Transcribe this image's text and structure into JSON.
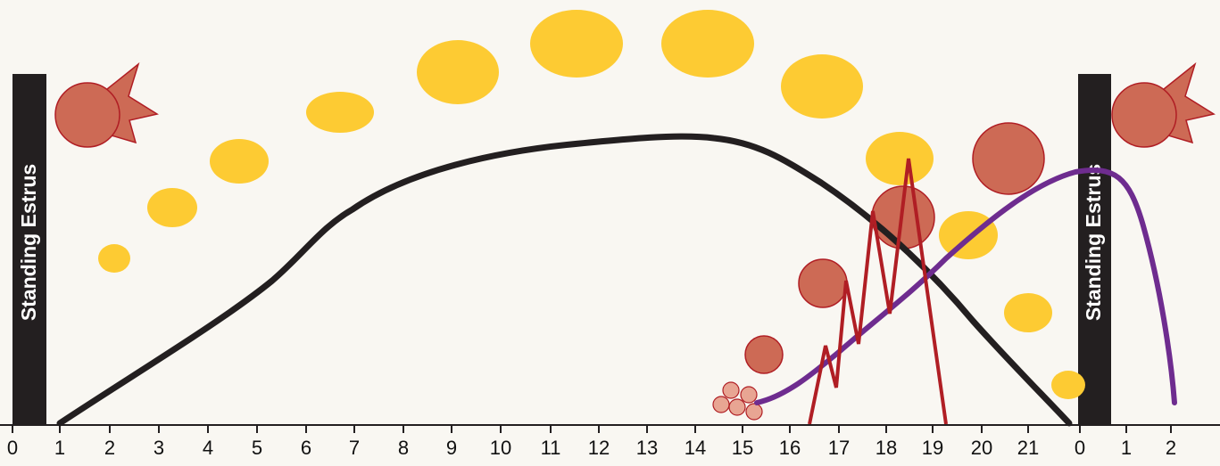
{
  "estrus_labels": [
    "Standing Estrus",
    "Standing Estrus"
  ],
  "axis": {
    "ticks": [
      "0",
      "1",
      "2",
      "3",
      "4",
      "5",
      "6",
      "7",
      "8",
      "9",
      "10",
      "11",
      "12",
      "13",
      "14",
      "15",
      "16",
      "17",
      "18",
      "19",
      "20",
      "21",
      "0",
      "1",
      "2"
    ]
  }
}
